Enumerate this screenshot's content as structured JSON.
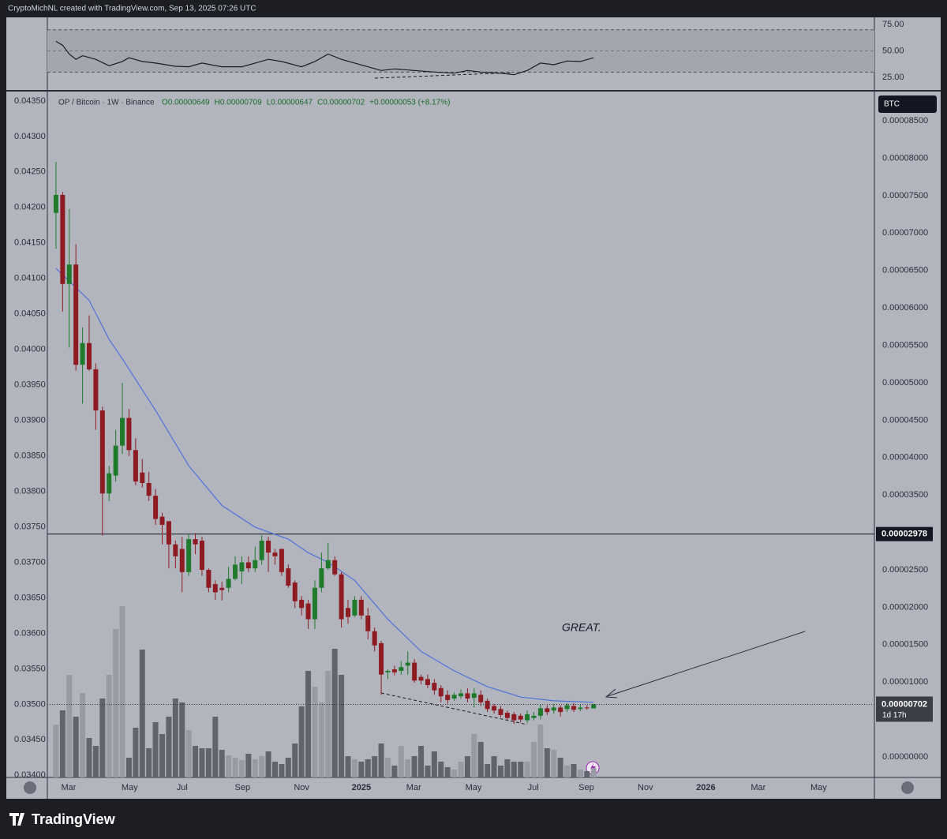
{
  "header": "CryptoMichNL created with TradingView.com, Sep 13, 2025 07:26 UTC",
  "brand": "TradingView",
  "chart_data": {
    "type": "candlestick",
    "title": "OP / Bitcoin · 1W · Binance",
    "legend": [
      "O0.00000649",
      "H0.00000709",
      "L0.00000647",
      "C0.00000702",
      "+0.00000053 (+8.17%)"
    ],
    "currency": "BTC",
    "up_color": "#1f7a2c",
    "down_color": "#8e1b22",
    "xlim": [
      -1.3,
      123.3
    ],
    "xticks": [
      {
        "value": 1.9,
        "label": "Mar"
      },
      {
        "value": 11.1,
        "label": "May"
      },
      {
        "value": 19.0,
        "label": "Jul"
      },
      {
        "value": 28.1,
        "label": "Sep"
      },
      {
        "value": 37.0,
        "label": "Nov"
      },
      {
        "value": 46.0,
        "label": "2025"
      },
      {
        "value": 53.9,
        "label": "Mar"
      },
      {
        "value": 62.9,
        "label": "May"
      },
      {
        "value": 71.9,
        "label": "Jul"
      },
      {
        "value": 79.9,
        "label": "Sep"
      },
      {
        "value": 88.8,
        "label": "Nov"
      },
      {
        "value": 97.9,
        "label": "2026"
      },
      {
        "value": 105.8,
        "label": "Mar"
      },
      {
        "value": 114.9,
        "label": "May"
      }
    ],
    "ylim": [
      -2.74e-06,
      8.87e-05
    ],
    "yticks": [
      {
        "value": 8.5e-05,
        "label": "0.00008500"
      },
      {
        "value": 8e-05,
        "label": "0.00008000"
      },
      {
        "value": 7.5e-05,
        "label": "0.00007500"
      },
      {
        "value": 7e-05,
        "label": "0.00007000"
      },
      {
        "value": 6.5e-05,
        "label": "0.00006500"
      },
      {
        "value": 6e-05,
        "label": "0.00006000"
      },
      {
        "value": 5.5e-05,
        "label": "0.00005500"
      },
      {
        "value": 5e-05,
        "label": "0.00005000"
      },
      {
        "value": 4.5e-05,
        "label": "0.00004500"
      },
      {
        "value": 4e-05,
        "label": "0.00004000"
      },
      {
        "value": 3.5e-05,
        "label": "0.00003500"
      },
      {
        "value": 3e-05,
        "label": "0.00003000"
      },
      {
        "value": 2.5e-05,
        "label": "0.00002500"
      },
      {
        "value": 2e-05,
        "label": "0.00002000"
      },
      {
        "value": 1.5e-05,
        "label": "0.00001500"
      },
      {
        "value": 1e-05,
        "label": "0.00001000"
      },
      {
        "value": 5e-06,
        "label": "0.00000500"
      },
      {
        "value": 0,
        "label": "0.00000000"
      }
    ],
    "y2lim": [
      0.03397,
      0.04361
    ],
    "y2ticks": [
      {
        "value": 0.0435,
        "label": "0.04350"
      },
      {
        "value": 0.043,
        "label": "0.04300"
      },
      {
        "value": 0.0425,
        "label": "0.04250"
      },
      {
        "value": 0.042,
        "label": "0.04200"
      },
      {
        "value": 0.0415,
        "label": "0.04150"
      },
      {
        "value": 0.041,
        "label": "0.04100"
      },
      {
        "value": 0.0405,
        "label": "0.04050"
      },
      {
        "value": 0.04,
        "label": "0.04000"
      },
      {
        "value": 0.0395,
        "label": "0.03950"
      },
      {
        "value": 0.039,
        "label": "0.03900"
      },
      {
        "value": 0.0385,
        "label": "0.03850"
      },
      {
        "value": 0.038,
        "label": "0.03800"
      },
      {
        "value": 0.0375,
        "label": "0.03750"
      },
      {
        "value": 0.037,
        "label": "0.03700"
      },
      {
        "value": 0.0365,
        "label": "0.03650"
      },
      {
        "value": 0.036,
        "label": "0.03600"
      },
      {
        "value": 0.0355,
        "label": "0.03550"
      },
      {
        "value": 0.035,
        "label": "0.03500"
      },
      {
        "value": 0.0345,
        "label": "0.03450"
      },
      {
        "value": 0.034,
        "label": "0.03400"
      }
    ],
    "open": [
      7.27e-05,
      7.51e-05,
      6.32e-05,
      6.58e-05,
      5.24e-05,
      5.53e-05,
      5.18e-05,
      4.63e-05,
      3.52e-05,
      3.76e-05,
      4.16e-05,
      4.53e-05,
      4.1e-05,
      3.8e-05,
      3.66e-05,
      3.49e-05,
      3.21e-05,
      3.15e-05,
      2.84e-05,
      2.78e-05,
      2.47e-05,
      2.91e-05,
      2.89e-05,
      2.5e-05,
      2.31e-05,
      2.26e-05,
      2.26e-05,
      2.38e-05,
      2.48e-05,
      2.6e-05,
      2.52e-05,
      2.63e-05,
      2.89e-05,
      2.73e-05,
      2.78e-05,
      2.52e-05,
      2.33e-05,
      2.1e-05,
      2.05e-05,
      1.84e-05,
      2.26e-05,
      2.52e-05,
      2.63e-05,
      2.44e-05,
      1.99e-05,
      1.89e-05,
      2.1e-05,
      1.89e-05,
      1.68e-05,
      1.52e-05,
      1.13e-05,
      1.17e-05,
      1.15e-05,
      1.22e-05,
      1.26e-05,
      1.07e-05,
      1.04e-05,
      9.9e-06,
      9.2e-06,
      8.3e-06,
      7.8e-06,
      8.1e-06,
      8.5e-06,
      7.9e-06,
      8.3e-06,
      7.5e-06,
      6.8e-06,
      6.4e-06,
      5.9e-06,
      5.7e-06,
      5.5e-06,
      4.9e-06,
      5.2e-06,
      5.5e-06,
      6.5e-06,
      6.2e-06,
      6.6e-06,
      6.4e-06,
      6.8e-06,
      6.4e-06,
      6.6e-06,
      6.49e-06
    ],
    "high": [
      7.95e-05,
      7.55e-05,
      7.32e-05,
      6.85e-05,
      5.74e-05,
      5.9e-05,
      5.26e-05,
      4.68e-05,
      3.89e-05,
      4.37e-05,
      5e-05,
      4.65e-05,
      4.26e-05,
      3.98e-05,
      3.81e-05,
      3.58e-05,
      3.26e-05,
      3.15e-05,
      2.89e-05,
      2.94e-05,
      2.97e-05,
      2.99e-05,
      2.94e-05,
      2.52e-05,
      2.36e-05,
      2.34e-05,
      2.54e-05,
      2.68e-05,
      2.68e-05,
      2.68e-05,
      2.81e-05,
      2.96e-05,
      2.94e-05,
      2.78e-05,
      2.78e-05,
      2.57e-05,
      2.36e-05,
      2.15e-05,
      2.1e-05,
      2.36e-05,
      2.73e-05,
      2.86e-05,
      2.68e-05,
      2.47e-05,
      2.1e-05,
      2.15e-05,
      2.15e-05,
      1.99e-05,
      1.73e-05,
      1.55e-05,
      1.17e-05,
      1.22e-05,
      1.28e-05,
      1.41e-05,
      1.31e-05,
      1.1e-05,
      1.1e-05,
      1.04e-05,
      9.6e-06,
      8.9e-06,
      8.6e-06,
      9e-06,
      9.2e-06,
      9.2e-06,
      8.9e-06,
      7.8e-06,
      7.1e-06,
      6.8e-06,
      6.2e-06,
      6e-06,
      5.8e-06,
      6.2e-06,
      6e-06,
      7e-06,
      6.9e-06,
      7.1e-06,
      6.9e-06,
      7.2e-06,
      7.2e-06,
      7e-06,
      6.9e-06,
      7.09e-06
    ],
    "low": [
      6.79e-05,
      5.95e-05,
      5.47e-05,
      5.16e-05,
      4.72e-05,
      5.16e-05,
      4.37e-05,
      2.96e-05,
      3.42e-05,
      3.68e-05,
      4.05e-05,
      4.02e-05,
      3.63e-05,
      3.6e-05,
      3.42e-05,
      3.1e-05,
      2.84e-05,
      2.52e-05,
      2.52e-05,
      2.2e-05,
      2.42e-05,
      2.71e-05,
      2.42e-05,
      2.2e-05,
      2.1e-05,
      2.09e-05,
      2.2e-05,
      2.36e-05,
      2.31e-05,
      2.47e-05,
      2.47e-05,
      2.57e-05,
      2.47e-05,
      2.57e-05,
      2.42e-05,
      2.26e-05,
      1.99e-05,
      1.89e-05,
      1.71e-05,
      1.71e-05,
      2.2e-05,
      2.5e-05,
      2.42e-05,
      1.73e-05,
      1.78e-05,
      1.87e-05,
      1.84e-05,
      1.57e-05,
      1.41e-05,
      8.3e-06,
      1.04e-05,
      1.09e-05,
      1.1e-05,
      1.1e-05,
      9.9e-06,
      9.7e-06,
      9.2e-06,
      8.3e-06,
      7.3e-06,
      7.1e-06,
      7.5e-06,
      7.8e-06,
      7.3e-06,
      6.6e-06,
      6.8e-06,
      6e-06,
      5.8e-06,
      5.3e-06,
      4.9e-06,
      4.4e-06,
      4.6e-06,
      4.5e-06,
      4.9e-06,
      5e-06,
      5.6e-06,
      5.8e-06,
      5.4e-06,
      6e-06,
      6e-06,
      6.1e-06,
      6.3e-06,
      6.47e-06
    ],
    "close": [
      7.51e-05,
      6.32e-05,
      6.58e-05,
      5.24e-05,
      5.53e-05,
      5.18e-05,
      4.63e-05,
      3.52e-05,
      3.79e-05,
      4.16e-05,
      4.53e-05,
      4.1e-05,
      3.68e-05,
      3.66e-05,
      3.49e-05,
      3.18e-05,
      3.1e-05,
      2.84e-05,
      2.68e-05,
      2.47e-05,
      2.91e-05,
      2.84e-05,
      2.5e-05,
      2.26e-05,
      2.2e-05,
      2.23e-05,
      2.38e-05,
      2.57e-05,
      2.6e-05,
      2.52e-05,
      2.63e-05,
      2.89e-05,
      2.73e-05,
      2.68e-05,
      2.47e-05,
      2.29e-05,
      2.08e-05,
      1.99e-05,
      1.84e-05,
      2.26e-05,
      2.52e-05,
      2.63e-05,
      2.44e-05,
      1.84e-05,
      1.87e-05,
      2.1e-05,
      1.89e-05,
      1.68e-05,
      1.49e-05,
      1.1e-05,
      1.15e-05,
      1.13e-05,
      1.2e-05,
      1.26e-05,
      1.02e-05,
      1.02e-05,
      9.6e-06,
      8.9e-06,
      8.1e-06,
      7.6e-06,
      8.3e-06,
      8.5e-06,
      7.8e-06,
      8.5e-06,
      7.3e-06,
      6.4e-06,
      6.2e-06,
      5.6e-06,
      5.2e-06,
      4.9e-06,
      5e-06,
      5.7e-06,
      5.5e-06,
      6.5e-06,
      6e-06,
      6.6e-06,
      6e-06,
      6.9e-06,
      6.3e-06,
      6.6e-06,
      6.5e-06,
      7.02e-06
    ],
    "volume": [
      67,
      85,
      130,
      77,
      107,
      50,
      40,
      100,
      130,
      188,
      217,
      25,
      63,
      162,
      37,
      70,
      55,
      77,
      100,
      95,
      60,
      40,
      37,
      37,
      77,
      35,
      28,
      25,
      22,
      30,
      23,
      27,
      33,
      20,
      17,
      25,
      43,
      90,
      135,
      115,
      95,
      135,
      163,
      130,
      27,
      23,
      20,
      23,
      27,
      43,
      25,
      15,
      40,
      23,
      27,
      40,
      15,
      33,
      20,
      13,
      10,
      20,
      27,
      55,
      45,
      17,
      27,
      15,
      23,
      20,
      20,
      20,
      45,
      67,
      37,
      35,
      25,
      15,
      17,
      10,
      8,
      12
    ],
    "volume_up_color": "#989ba4",
    "volume_down_color": "#61646d",
    "ma": {
      "color": "#4f72d8",
      "x": [
        0,
        5,
        8,
        10,
        15,
        20,
        25,
        30,
        35,
        38,
        41,
        45,
        50,
        55,
        60,
        65,
        70,
        75,
        81
      ],
      "values": [
        6.53e-05,
        6.1e-05,
        5.58e-05,
        5.32e-05,
        4.63e-05,
        3.89e-05,
        3.36e-05,
        3.07e-05,
        2.91e-05,
        2.73e-05,
        2.6e-05,
        2.36e-05,
        1.84e-05,
        1.41e-05,
        1.15e-05,
        9.4e-06,
        8e-06,
        7.5e-06,
        7.3e-06
      ]
    },
    "hline": {
      "value": 2.978e-05,
      "label": "0.00002978"
    },
    "last_price": {
      "value": 7.02e-06,
      "label": "0.00000702",
      "countdown": "1d 17h"
    },
    "annotation": "GREAT.",
    "rsi": {
      "color": "#1c1c1c",
      "ylim": [
        14.6,
        81.7
      ],
      "band": [
        30,
        70
      ],
      "yticks": [
        {
          "value": 75,
          "label": "75.00"
        },
        {
          "value": 50,
          "label": "50.00"
        },
        {
          "value": 25,
          "label": "25.00"
        }
      ],
      "x": [
        0,
        1,
        2,
        3,
        4,
        6,
        8,
        10,
        11,
        13,
        15,
        18,
        20,
        22,
        25,
        28,
        30,
        32,
        34,
        37,
        39,
        41,
        43,
        45,
        47,
        49,
        51,
        54,
        57,
        60,
        62,
        64,
        67,
        69,
        71,
        73,
        75,
        77,
        79,
        81
      ],
      "values": [
        59,
        55.4,
        47,
        42,
        45.5,
        42,
        36,
        40,
        43.5,
        40,
        38.5,
        35.5,
        35,
        38.5,
        35,
        35,
        38.5,
        42,
        40,
        35,
        40,
        47,
        42,
        38.5,
        35,
        31.5,
        33,
        31.5,
        30,
        29,
        31.5,
        30,
        29,
        27.5,
        31.5,
        38.5,
        37,
        40.5,
        40,
        43.5
      ]
    }
  }
}
